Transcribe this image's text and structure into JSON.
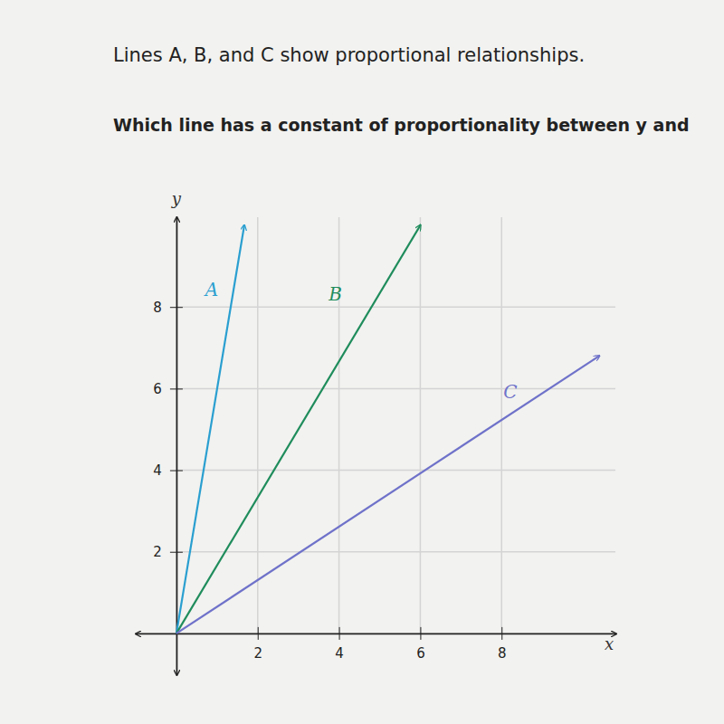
{
  "chart_data": {
    "type": "line",
    "title": "Lines A, B, and C show proportional relationships.",
    "subtitle": "Which line has a constant of proportionality between y and",
    "xlabel": "x",
    "ylabel": "y",
    "xlim": [
      -1,
      10.8
    ],
    "ylim": [
      -1,
      10.2
    ],
    "xticks": [
      2,
      4,
      6,
      8
    ],
    "yticks": [
      2,
      4,
      6,
      8
    ],
    "grid": true,
    "series": [
      {
        "name": "A",
        "color": "#2a9fd0",
        "x": [
          0,
          1.67
        ],
        "values": [
          0,
          10
        ]
      },
      {
        "name": "B",
        "color": "#1f8c5c",
        "x": [
          0,
          6
        ],
        "values": [
          0,
          10
        ]
      },
      {
        "name": "C",
        "color": "#6f72c9",
        "x": [
          0,
          10.4
        ],
        "values": [
          0,
          6.8
        ]
      }
    ]
  }
}
